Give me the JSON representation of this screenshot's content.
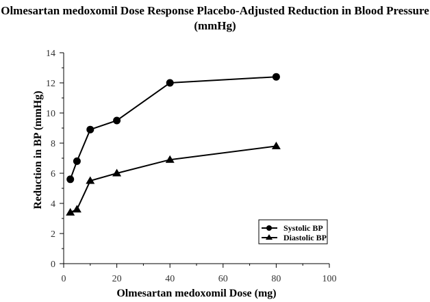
{
  "chart_data": {
    "type": "line",
    "title": "Olmesartan medoxomil Dose Response Placebo-Adjusted Reduction in Blood Pressure (mmHg)",
    "xlabel": "Olmesartan medoxomil Dose (mg)",
    "ylabel": "Reduction in BP (mmHg)",
    "xlim": [
      0,
      100
    ],
    "ylim": [
      0,
      14
    ],
    "xticks": [
      "0",
      "20",
      "40",
      "60",
      "80",
      "100"
    ],
    "yticks": [
      "0",
      "2",
      "4",
      "6",
      "8",
      "10",
      "12",
      "14"
    ],
    "x": [
      2.5,
      5,
      10,
      20,
      40,
      80
    ],
    "series": [
      {
        "name": "Systolic BP",
        "marker": "circle",
        "values": [
          5.6,
          6.8,
          8.9,
          9.5,
          12.0,
          12.4
        ]
      },
      {
        "name": "Diastolic BP",
        "marker": "triangle",
        "values": [
          3.4,
          3.6,
          5.5,
          6.0,
          6.9,
          7.8
        ]
      }
    ],
    "legend_position": "bottom-right",
    "grid": false
  }
}
